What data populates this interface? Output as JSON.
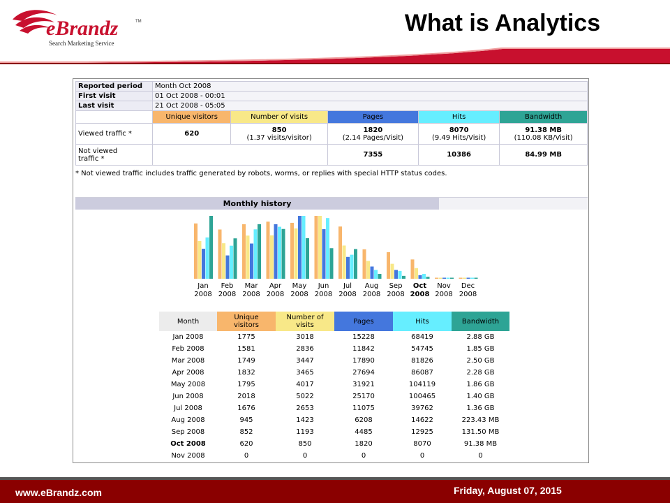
{
  "header": {
    "logo_text": "eBrandz",
    "logo_tm": "TM",
    "logo_sub": "Search Marketing Service",
    "title": "What is Analytics"
  },
  "summary": {
    "reported_period_label": "Reported period",
    "reported_period_value": "Month Oct 2008",
    "first_visit_label": "First visit",
    "first_visit_value": "01 Oct 2008 - 00:01",
    "last_visit_label": "Last visit",
    "last_visit_value": "21 Oct 2008 - 05:05",
    "columns": [
      "Unique visitors",
      "Number of visits",
      "Pages",
      "Hits",
      "Bandwidth"
    ],
    "viewed": {
      "label": "Viewed traffic *",
      "values": [
        "620",
        "850",
        "1820",
        "8070",
        "91.38 MB"
      ],
      "subvalues": [
        "",
        "(1.37 visits/visitor)",
        "(2.14 Pages/Visit)",
        "(9.49 Hits/Visit)",
        "(110.08 KB/Visit)"
      ]
    },
    "not_viewed": {
      "label_line1": "Not viewed",
      "label_line2": "traffic *",
      "values": [
        "",
        "",
        "7355",
        "10386",
        "84.99 MB"
      ]
    },
    "note": "* Not viewed traffic includes traffic generated by robots, worms, or replies with special HTTP status codes."
  },
  "monthly_history": {
    "title": "Monthly history",
    "header_month": "Month",
    "header_unique_1": "Unique",
    "header_unique_2": "visitors",
    "header_visits_1": "Number of",
    "header_visits_2": "visits",
    "header_pages": "Pages",
    "header_hits": "Hits",
    "header_bandwidth": "Bandwidth",
    "rows": [
      {
        "month": "Jan 2008",
        "unique": "1775",
        "visits": "3018",
        "pages": "15228",
        "hits": "68419",
        "bandwidth": "2.88 GB"
      },
      {
        "month": "Feb 2008",
        "unique": "1581",
        "visits": "2836",
        "pages": "11842",
        "hits": "54745",
        "bandwidth": "1.85 GB"
      },
      {
        "month": "Mar 2008",
        "unique": "1749",
        "visits": "3447",
        "pages": "17890",
        "hits": "81826",
        "bandwidth": "2.50 GB"
      },
      {
        "month": "Apr 2008",
        "unique": "1832",
        "visits": "3465",
        "pages": "27694",
        "hits": "86087",
        "bandwidth": "2.28 GB"
      },
      {
        "month": "May 2008",
        "unique": "1795",
        "visits": "4017",
        "pages": "31921",
        "hits": "104119",
        "bandwidth": "1.86 GB"
      },
      {
        "month": "Jun 2008",
        "unique": "2018",
        "visits": "5022",
        "pages": "25170",
        "hits": "100465",
        "bandwidth": "1.40 GB"
      },
      {
        "month": "Jul 2008",
        "unique": "1676",
        "visits": "2653",
        "pages": "11075",
        "hits": "39762",
        "bandwidth": "1.36 GB"
      },
      {
        "month": "Aug 2008",
        "unique": "945",
        "visits": "1423",
        "pages": "6208",
        "hits": "14622",
        "bandwidth": "223.43 MB"
      },
      {
        "month": "Sep 2008",
        "unique": "852",
        "visits": "1193",
        "pages": "4485",
        "hits": "12925",
        "bandwidth": "131.50 MB"
      },
      {
        "month": "Oct 2008",
        "unique": "620",
        "visits": "850",
        "pages": "1820",
        "hits": "8070",
        "bandwidth": "91.38 MB",
        "current": true
      },
      {
        "month": "Nov 2008",
        "unique": "0",
        "visits": "0",
        "pages": "0",
        "hits": "0",
        "bandwidth": "0"
      }
    ]
  },
  "chart_data": {
    "type": "bar",
    "categories": [
      [
        "Jan",
        "2008"
      ],
      [
        "Feb",
        "2008"
      ],
      [
        "Mar",
        "2008"
      ],
      [
        "Apr",
        "2008"
      ],
      [
        "May",
        "2008"
      ],
      [
        "Jun",
        "2008"
      ],
      [
        "Jul",
        "2008"
      ],
      [
        "Aug",
        "2008"
      ],
      [
        "Sep",
        "2008"
      ],
      [
        "Oct",
        "2008"
      ],
      [
        "Nov",
        "2008"
      ],
      [
        "Dec",
        "2008"
      ]
    ],
    "bold_category": 9,
    "series": [
      {
        "key": "unique",
        "values": [
          1775,
          1581,
          1749,
          1832,
          1795,
          2018,
          1676,
          945,
          852,
          620,
          0,
          0
        ]
      },
      {
        "key": "visits",
        "values": [
          3018,
          2836,
          3447,
          3465,
          4017,
          5022,
          2653,
          1423,
          1193,
          850,
          0,
          0
        ]
      },
      {
        "key": "pages",
        "values": [
          15228,
          11842,
          17890,
          27694,
          31921,
          25170,
          11075,
          6208,
          4485,
          1820,
          0,
          0
        ]
      },
      {
        "key": "hits",
        "values": [
          68419,
          54745,
          81826,
          86087,
          104119,
          100465,
          39762,
          14622,
          12925,
          8070,
          0,
          0
        ]
      },
      {
        "key": "bandwidth_gb",
        "values": [
          2.88,
          1.85,
          2.5,
          2.28,
          1.86,
          1.4,
          1.36,
          0.223,
          0.132,
          0.091,
          0,
          0
        ]
      }
    ]
  },
  "colors": {
    "unique": "#f8b66c",
    "visits": "#f8e888",
    "pages": "#4477dd",
    "hits": "#66eeff",
    "bandwidth": "#2ea495",
    "month_header": "#ececec",
    "brand_red": "#c8102e",
    "footer_red": "#8a0000"
  },
  "footer": {
    "url": "www.eBrandz.com",
    "date": "Friday, August 07, 2015"
  }
}
